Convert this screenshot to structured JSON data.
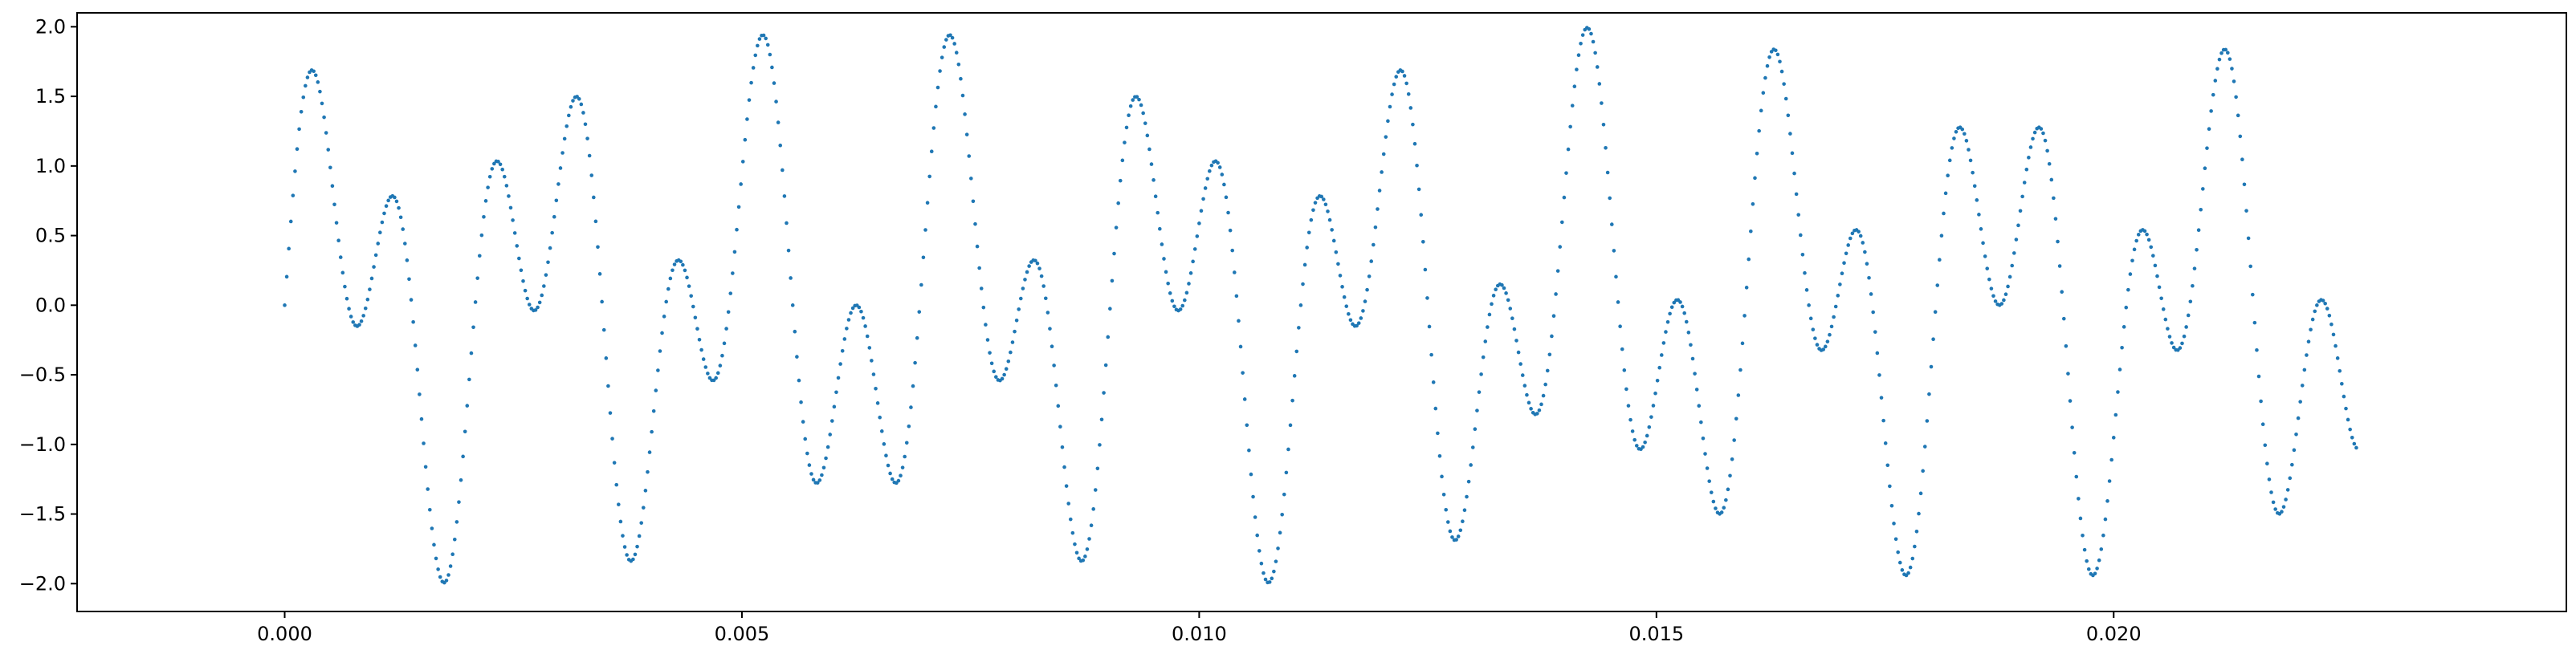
{
  "chart_data": {
    "type": "scatter",
    "title": "",
    "xlabel": "",
    "ylabel": "",
    "xlim": [
      -0.00227,
      0.02495
    ],
    "ylim": [
      -2.2,
      2.1
    ],
    "grid": false,
    "legend": "none",
    "marker_color": "#1f77b4",
    "sample_count": 1000,
    "sample_rate": 44100,
    "signal": {
      "form": "sum of sines",
      "components": [
        {
          "amplitude": 1.0,
          "frequency_hz": 440
        },
        {
          "amplitude": 1.0,
          "frequency_hz": 1000
        }
      ]
    },
    "x_ticks": [
      {
        "value": 0.0,
        "label": "0.000"
      },
      {
        "value": 0.005,
        "label": "0.005"
      },
      {
        "value": 0.01,
        "label": "0.010"
      },
      {
        "value": 0.015,
        "label": "0.015"
      },
      {
        "value": 0.02,
        "label": "0.020"
      }
    ],
    "y_ticks": [
      {
        "value": 2.0,
        "label": "2.0"
      },
      {
        "value": 1.5,
        "label": "1.5"
      },
      {
        "value": 1.0,
        "label": "1.0"
      },
      {
        "value": 0.5,
        "label": "0.5"
      },
      {
        "value": 0.0,
        "label": "0.0"
      },
      {
        "value": -0.5,
        "label": "−0.5"
      },
      {
        "value": -1.0,
        "label": "−1.0"
      },
      {
        "value": -1.5,
        "label": "−1.5"
      },
      {
        "value": -2.0,
        "label": "−2.0"
      }
    ]
  }
}
